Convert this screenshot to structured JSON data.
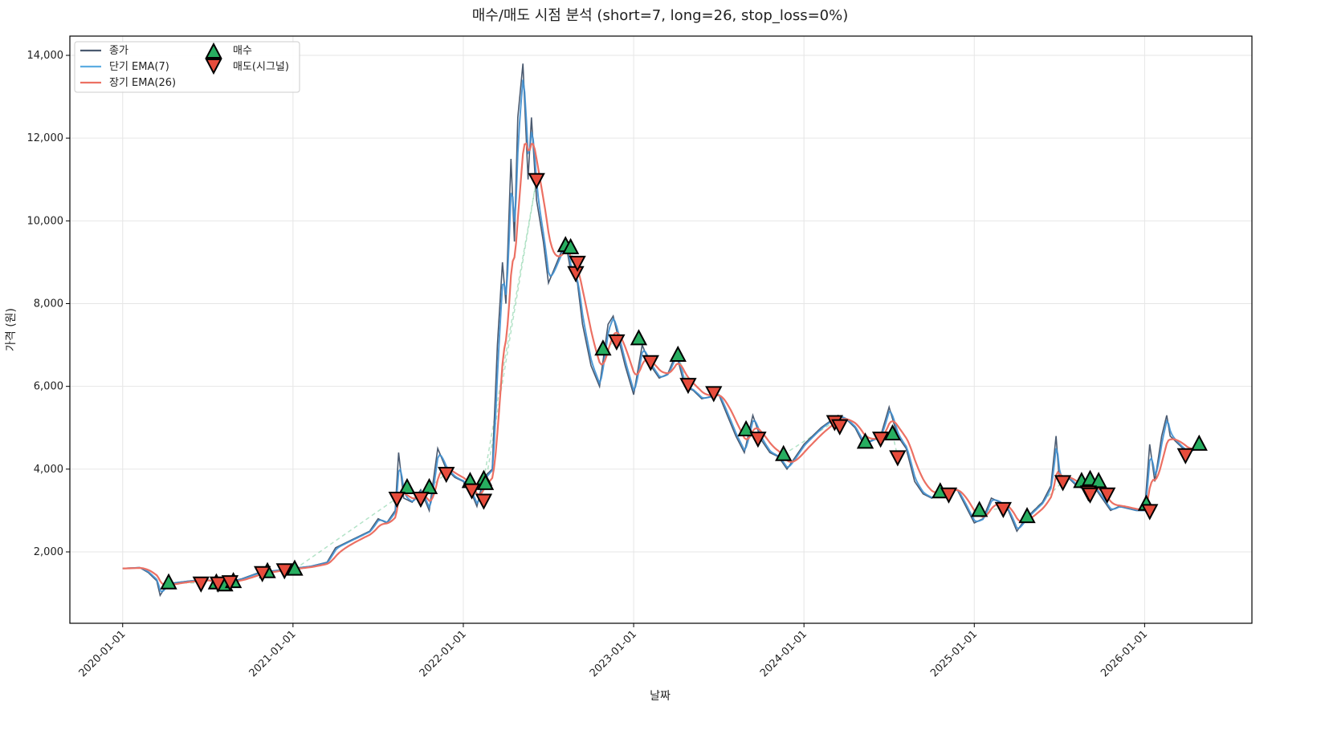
{
  "chart_data": {
    "type": "line",
    "title": "매수/매도 시점 분석 (short=7, long=26, stop_loss=0%)",
    "xlabel": "날짜",
    "ylabel": "가격 (원)",
    "x_unit": "decimal year",
    "xlim": [
      2019.69,
      2026.63
    ],
    "ylim": [
      275,
      14465
    ],
    "grid": true,
    "legend_placement": "top-left",
    "x_ticks": [
      {
        "value": 2020,
        "label": "2020-01-01"
      },
      {
        "value": 2021,
        "label": "2021-01-01"
      },
      {
        "value": 2022,
        "label": "2022-01-01"
      },
      {
        "value": 2023,
        "label": "2023-01-01"
      },
      {
        "value": 2024,
        "label": "2024-01-01"
      },
      {
        "value": 2025,
        "label": "2025-01-01"
      },
      {
        "value": 2026,
        "label": "2026-01-01"
      }
    ],
    "y_ticks": [
      {
        "value": 2000,
        "label": "2,000"
      },
      {
        "value": 4000,
        "label": "4,000"
      },
      {
        "value": 6000,
        "label": "6,000"
      },
      {
        "value": 8000,
        "label": "8,000"
      },
      {
        "value": 10000,
        "label": "10,000"
      },
      {
        "value": 12000,
        "label": "12,000"
      },
      {
        "value": 14000,
        "label": "14,000"
      }
    ],
    "ema_short_span": 7,
    "ema_long_span": 26,
    "series": [
      {
        "name": "종가",
        "color": "#4a5a70",
        "x": [
          2020.0,
          2020.1,
          2020.15,
          2020.2,
          2020.22,
          2020.25,
          2020.3,
          2020.4,
          2020.5,
          2020.55,
          2020.6,
          2020.7,
          2020.8,
          2020.9,
          2021.0,
          2021.1,
          2021.2,
          2021.25,
          2021.35,
          2021.45,
          2021.5,
          2021.55,
          2021.6,
          2021.62,
          2021.65,
          2021.7,
          2021.75,
          2021.8,
          2021.85,
          2021.9,
          2021.95,
          2022.0,
          2022.05,
          2022.08,
          2022.12,
          2022.17,
          2022.2,
          2022.23,
          2022.25,
          2022.28,
          2022.3,
          2022.32,
          2022.35,
          2022.38,
          2022.4,
          2022.43,
          2022.47,
          2022.5,
          2022.55,
          2022.6,
          2022.63,
          2022.67,
          2022.7,
          2022.75,
          2022.8,
          2022.85,
          2022.88,
          2022.92,
          2022.95,
          2023.0,
          2023.05,
          2023.1,
          2023.15,
          2023.2,
          2023.25,
          2023.3,
          2023.35,
          2023.4,
          2023.5,
          2023.55,
          2023.6,
          2023.65,
          2023.7,
          2023.75,
          2023.8,
          2023.85,
          2023.9,
          2023.95,
          2024.0,
          2024.1,
          2024.2,
          2024.25,
          2024.3,
          2024.35,
          2024.45,
          2024.5,
          2024.55,
          2024.6,
          2024.65,
          2024.7,
          2024.75,
          2024.8,
          2024.9,
          2024.95,
          2025.0,
          2025.05,
          2025.1,
          2025.15,
          2025.2,
          2025.25,
          2025.3,
          2025.35,
          2025.4,
          2025.45,
          2025.48,
          2025.5,
          2025.55,
          2025.6,
          2025.65,
          2025.7,
          2025.75,
          2025.8,
          2025.85,
          2025.95,
          2026.0,
          2026.03,
          2026.06,
          2026.1,
          2026.13,
          2026.15,
          2026.2,
          2026.25,
          2026.3
        ],
        "y": [
          1600,
          1620,
          1500,
          1300,
          950,
          1150,
          1250,
          1300,
          1320,
          1250,
          1250,
          1350,
          1500,
          1550,
          1600,
          1650,
          1750,
          2100,
          2300,
          2500,
          2800,
          2700,
          3000,
          4400,
          3300,
          3200,
          3500,
          3000,
          4500,
          4000,
          3800,
          3700,
          3400,
          3100,
          3800,
          4000,
          7000,
          9000,
          8000,
          11500,
          9500,
          12500,
          13800,
          11000,
          12500,
          10500,
          9500,
          8500,
          9000,
          9500,
          8800,
          8500,
          7500,
          6500,
          6000,
          7500,
          7700,
          7000,
          6500,
          5800,
          7000,
          6500,
          6200,
          6300,
          6800,
          6000,
          5900,
          5700,
          5800,
          5300,
          4800,
          4400,
          5300,
          4700,
          4400,
          4300,
          4000,
          4300,
          4600,
          5000,
          5300,
          5200,
          5000,
          4600,
          4800,
          5500,
          4800,
          4500,
          3700,
          3400,
          3300,
          3500,
          3500,
          3100,
          2700,
          2800,
          3300,
          3200,
          3000,
          2500,
          2800,
          3000,
          3200,
          3600,
          4800,
          3700,
          3800,
          3600,
          3500,
          3600,
          3300,
          3000,
          3100,
          3000,
          3000,
          4600,
          3700,
          4800,
          5300,
          4800,
          4600,
          4400,
          4500
        ]
      },
      {
        "name": "단기 EMA(7)",
        "color": "#5dade2"
      },
      {
        "name": "장기 EMA(26)",
        "color": "#ec7063"
      }
    ],
    "signals": {
      "buy": {
        "name": "매수",
        "color": "#27ae60",
        "x": [
          2020.27,
          2020.55,
          2020.6,
          2020.65,
          2020.85,
          2021.01,
          2021.67,
          2021.8,
          2022.04,
          2022.12,
          2022.13,
          2022.6,
          2022.63,
          2022.82,
          2023.03,
          2023.26,
          2023.66,
          2023.88,
          2024.36,
          2024.52,
          2024.8,
          2025.03,
          2025.31,
          2025.63,
          2025.68,
          2025.73,
          2026.01,
          2026.32
        ],
        "y": [
          1250,
          1250,
          1200,
          1280,
          1520,
          1580,
          3550,
          3550,
          3700,
          3750,
          3650,
          9400,
          9350,
          6900,
          7150,
          6750,
          4950,
          4350,
          4650,
          4850,
          3450,
          3000,
          2850,
          3700,
          3750,
          3700,
          3150,
          4600
        ]
      },
      "sell": {
        "name": "매도(시그널)",
        "color": "#e74c3c",
        "x": [
          2020.46,
          2020.56,
          2020.63,
          2020.82,
          2020.95,
          2021.61,
          2021.75,
          2021.9,
          2022.05,
          2022.12,
          2022.43,
          2022.66,
          2022.67,
          2022.9,
          2023.1,
          2023.32,
          2023.47,
          2023.73,
          2024.18,
          2024.21,
          2024.45,
          2024.55,
          2024.85,
          2025.17,
          2025.52,
          2025.67,
          2025.68,
          2025.78,
          2026.03,
          2026.24
        ],
        "y": [
          1250,
          1250,
          1280,
          1500,
          1570,
          3300,
          3300,
          3900,
          3500,
          3250,
          11000,
          8750,
          9000,
          7100,
          6600,
          6050,
          5850,
          4750,
          5150,
          5050,
          4750,
          4300,
          3400,
          3050,
          3700,
          3450,
          3400,
          3400,
          3000,
          4350
        ]
      }
    }
  }
}
